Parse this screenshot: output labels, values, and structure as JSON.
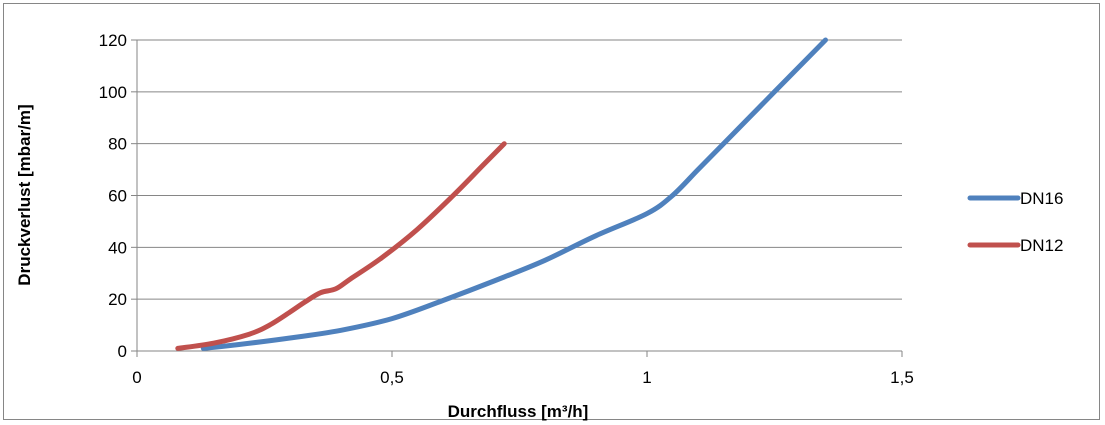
{
  "chart_data": {
    "type": "line",
    "title": "",
    "xlabel": "Durchfluss [m³/h]",
    "ylabel": "Druckverlust [mbar/m]",
    "xlim": [
      0,
      1.5
    ],
    "ylim": [
      0,
      120
    ],
    "x_ticks": [
      0,
      0.5,
      1,
      1.5
    ],
    "x_tick_labels": [
      "0",
      "0,5",
      "1",
      "1,5"
    ],
    "y_ticks": [
      0,
      20,
      40,
      60,
      80,
      100,
      120
    ],
    "y_tick_labels": [
      "0",
      "20",
      "40",
      "60",
      "80",
      "100",
      "120"
    ],
    "grid": "horizontal",
    "legend_position": "right",
    "series": [
      {
        "name": "DN16",
        "color": "#4F81BD",
        "x": [
          0.13,
          0.2,
          0.3,
          0.4,
          0.5,
          0.6,
          0.7,
          0.8,
          0.9,
          1.0,
          1.05,
          1.1,
          1.15,
          1.2,
          1.25,
          1.3,
          1.35
        ],
        "y": [
          1,
          2.5,
          5,
          8,
          12.5,
          19.5,
          27,
          35,
          44.5,
          53,
          60,
          70,
          80,
          90,
          100,
          110,
          120
        ]
      },
      {
        "name": "DN12",
        "color": "#C0504D",
        "x": [
          0.08,
          0.15,
          0.22,
          0.26,
          0.3,
          0.33,
          0.36,
          0.39,
          0.42,
          0.48,
          0.55,
          0.62,
          0.68,
          0.72
        ],
        "y": [
          1,
          3,
          6.5,
          10,
          15,
          19,
          22.5,
          24,
          28,
          36,
          47,
          60,
          72,
          80
        ]
      }
    ]
  }
}
